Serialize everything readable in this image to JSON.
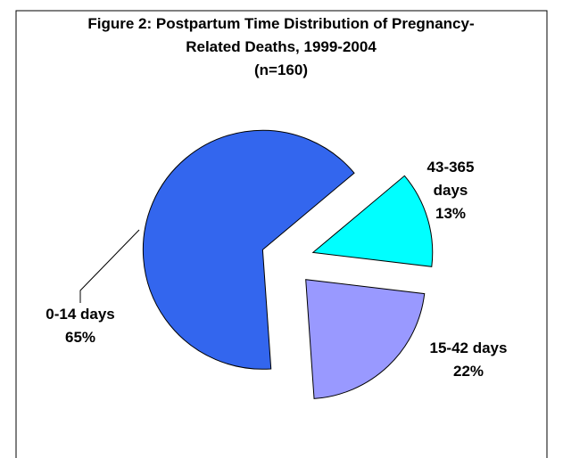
{
  "chart_data": {
    "type": "pie",
    "title": "Figure 2: Postpartum Time Distribution of Pregnancy-Related Deaths, 1999-2004",
    "subtitle": "(n=160)",
    "categories": [
      "0-14 days",
      "15-42 days",
      "43-365 days"
    ],
    "values": [
      65,
      22,
      13
    ],
    "value_labels": [
      "65%",
      "22%",
      "13%"
    ],
    "colors": [
      "#3366ee",
      "#9999ff",
      "#00ffff"
    ]
  }
}
